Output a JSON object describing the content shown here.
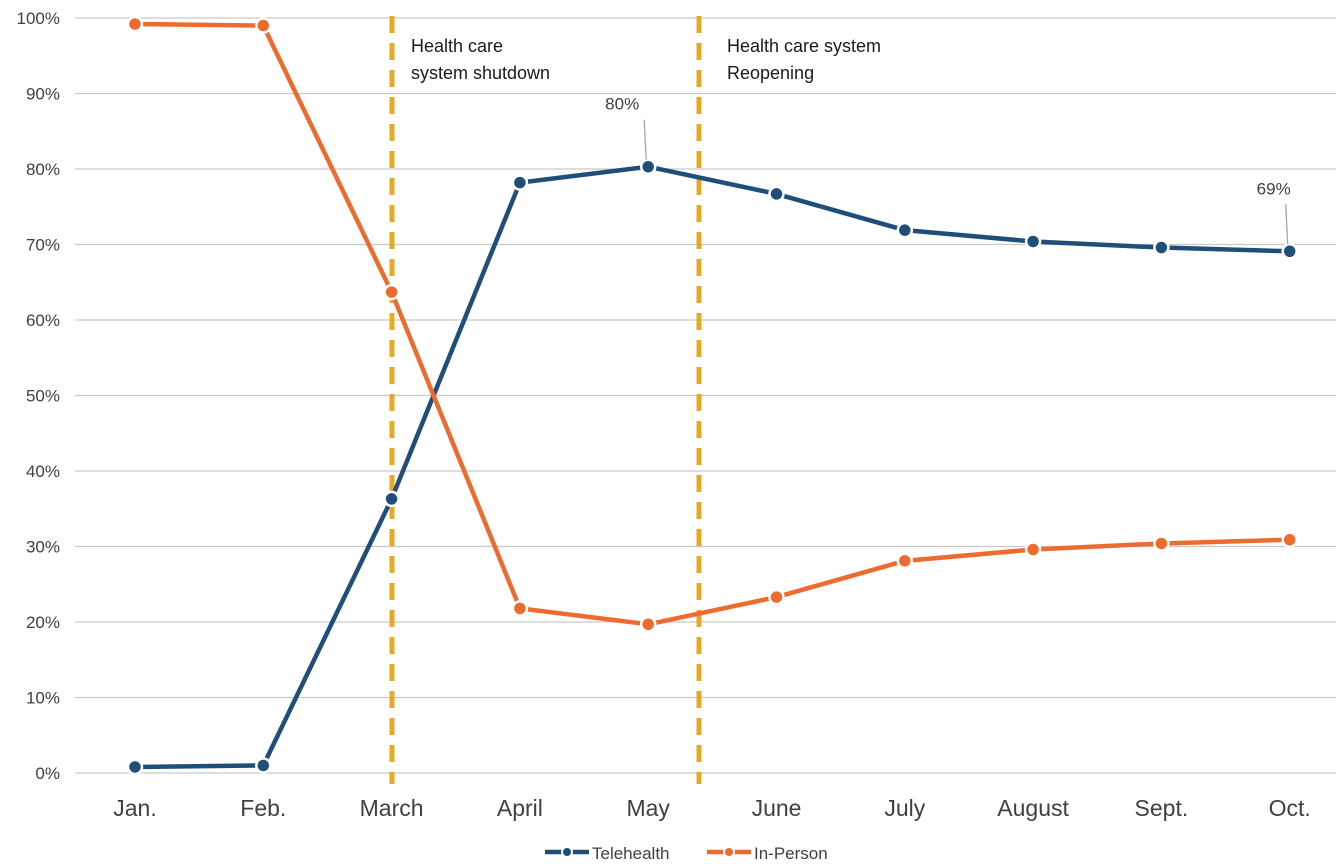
{
  "chart_data": {
    "type": "line",
    "categories": [
      "Jan.",
      "Feb.",
      "March",
      "April",
      "May",
      "June",
      "July",
      "August",
      "Sept.",
      "Oct."
    ],
    "ylim": [
      0,
      100
    ],
    "yticks": [
      0,
      10,
      20,
      30,
      40,
      50,
      60,
      70,
      80,
      90,
      100
    ],
    "ytick_labels": [
      "0%",
      "10%",
      "20%",
      "30%",
      "40%",
      "50%",
      "60%",
      "70%",
      "80%",
      "90%",
      "100%"
    ],
    "grid": true,
    "legend_position": "bottom",
    "series": [
      {
        "name": "Telehealth",
        "color": "#1f4e79",
        "values": [
          0.8,
          1.0,
          36.3,
          78.2,
          80.3,
          76.7,
          71.9,
          70.4,
          69.6,
          69.1
        ]
      },
      {
        "name": "In-Person",
        "color": "#ed6b2f",
        "values": [
          99.2,
          99.0,
          63.7,
          21.8,
          19.7,
          23.3,
          28.1,
          29.6,
          30.4,
          30.9
        ]
      }
    ],
    "data_labels": [
      {
        "series": 0,
        "index": 4,
        "text": "80%"
      },
      {
        "series": 0,
        "index": 9,
        "text": "69%"
      }
    ],
    "events": [
      {
        "between": [
          2,
          2
        ],
        "lines": [
          "Health care",
          "system shutdown"
        ],
        "color": "#e8a823"
      },
      {
        "between": [
          4,
          5
        ],
        "lines": [
          "Health care system",
          "Reopening"
        ],
        "color": "#e8a823"
      }
    ]
  }
}
